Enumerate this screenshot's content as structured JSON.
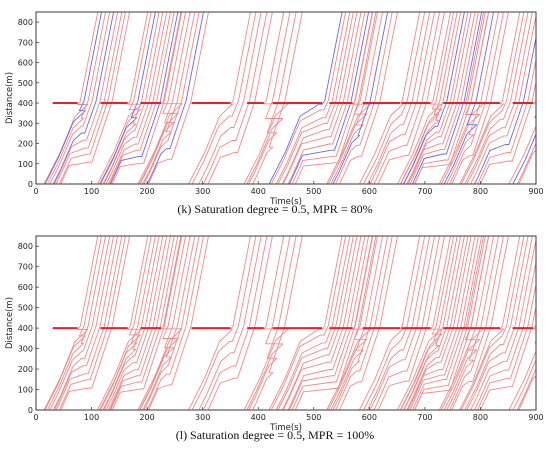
{
  "chart_data": [
    {
      "type": "line",
      "title": "",
      "caption": "(k) Saturation degree = 0.5, MPR = 80%",
      "xlabel": "Time(s)",
      "ylabel": "Distance(m)",
      "xlim": [
        0,
        900
      ],
      "ylim": [
        0,
        850
      ],
      "xticks": [
        0,
        100,
        200,
        300,
        400,
        500,
        600,
        700,
        800,
        900
      ],
      "yticks": [
        0,
        100,
        200,
        300,
        400,
        500,
        600,
        700,
        800
      ],
      "grid": false,
      "signal_stop_line": {
        "distance": 400,
        "color": "#e8202a"
      },
      "series_colors": {
        "human_driven": "#f08a8a",
        "connected_automated": "#6a6ae0"
      },
      "cycles": [
        {
          "start": 12,
          "green": 75,
          "n": 9,
          "cav": [
            1,
            4
          ]
        },
        {
          "start": 108,
          "green": 165,
          "n": 10,
          "cav": [
            2,
            8
          ]
        },
        {
          "start": 180,
          "green": 225,
          "n": 7,
          "cav": [
            5
          ]
        },
        {
          "start": 272,
          "green": 350,
          "n": 5,
          "cav": []
        },
        {
          "start": 372,
          "green": 410,
          "n": 4,
          "cav": []
        },
        {
          "start": 418,
          "green": 515,
          "n": 10,
          "cav": [
            0,
            7
          ]
        },
        {
          "start": 520,
          "green": 570,
          "n": 6,
          "cav": [
            3
          ]
        },
        {
          "start": 580,
          "green": 655,
          "n": 6,
          "cav": []
        },
        {
          "start": 650,
          "green": 710,
          "n": 12,
          "cav": [
            4,
            9
          ]
        },
        {
          "start": 725,
          "green": 770,
          "n": 6,
          "cav": [
            2
          ]
        },
        {
          "start": 760,
          "green": 835,
          "n": 8,
          "cav": [
            5
          ]
        },
        {
          "start": 850,
          "green": 895,
          "n": 4,
          "cav": [
            1
          ]
        }
      ]
    },
    {
      "type": "line",
      "title": "",
      "caption": "(l) Saturation degree = 0.5, MPR = 100%",
      "xlabel": "Time(s)",
      "ylabel": "Distance(m)",
      "xlim": [
        0,
        900
      ],
      "ylim": [
        0,
        850
      ],
      "xticks": [
        0,
        100,
        200,
        300,
        400,
        500,
        600,
        700,
        800,
        900
      ],
      "yticks": [
        0,
        100,
        200,
        300,
        400,
        500,
        600,
        700,
        800
      ],
      "grid": false,
      "signal_stop_line": {
        "distance": 400,
        "color": "#e8202a"
      },
      "series_colors": {
        "human_driven": "#f08a8a"
      },
      "cycles": [
        {
          "start": 12,
          "green": 75,
          "n": 9,
          "cav": []
        },
        {
          "start": 108,
          "green": 165,
          "n": 10,
          "cav": []
        },
        {
          "start": 180,
          "green": 225,
          "n": 7,
          "cav": []
        },
        {
          "start": 272,
          "green": 350,
          "n": 5,
          "cav": []
        },
        {
          "start": 372,
          "green": 410,
          "n": 4,
          "cav": []
        },
        {
          "start": 418,
          "green": 515,
          "n": 10,
          "cav": []
        },
        {
          "start": 520,
          "green": 570,
          "n": 6,
          "cav": []
        },
        {
          "start": 580,
          "green": 655,
          "n": 6,
          "cav": []
        },
        {
          "start": 650,
          "green": 710,
          "n": 12,
          "cav": []
        },
        {
          "start": 725,
          "green": 770,
          "n": 6,
          "cav": []
        },
        {
          "start": 760,
          "green": 835,
          "n": 8,
          "cav": []
        },
        {
          "start": 850,
          "green": 895,
          "n": 4,
          "cav": []
        }
      ]
    }
  ]
}
